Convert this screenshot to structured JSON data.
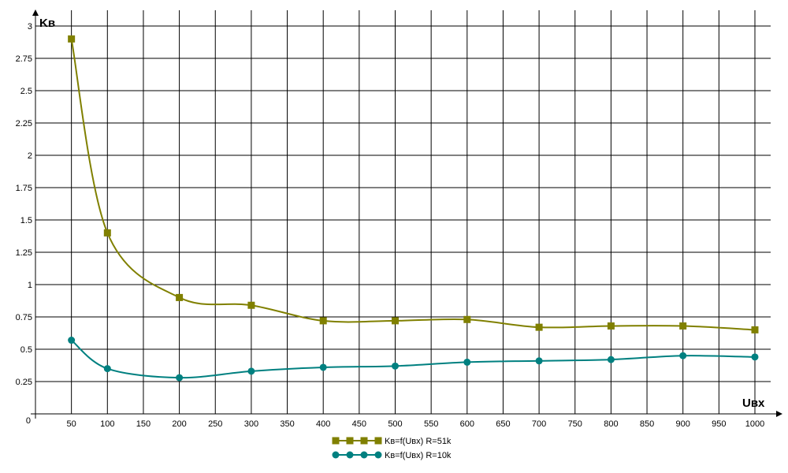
{
  "chart_data": {
    "type": "line",
    "xlabel": "Uвх",
    "ylabel": "Kв",
    "xlim": [
      0,
      1000
    ],
    "ylim": [
      0,
      3
    ],
    "x_ticks": [
      0,
      50,
      100,
      150,
      200,
      250,
      300,
      350,
      400,
      450,
      500,
      550,
      600,
      650,
      700,
      750,
      800,
      850,
      900,
      950,
      1000
    ],
    "y_ticks": [
      0.25,
      0.5,
      0.75,
      1,
      1.25,
      1.5,
      1.75,
      2,
      2.25,
      2.5,
      2.75,
      3
    ],
    "y_tick_labels": [
      "0.25",
      "0.5",
      "0.75",
      "1",
      "1.25",
      "1.5",
      "1.75",
      "2",
      "2.25",
      "2.5",
      "2.75",
      "3"
    ],
    "origin_label": "0",
    "grid": true,
    "legend_position": "bottom-center",
    "series": [
      {
        "name": "Kв=f(Uвх) R=51k",
        "color": "#808000",
        "marker": "square",
        "x": [
          50,
          100,
          200,
          300,
          400,
          500,
          600,
          700,
          800,
          900,
          1000
        ],
        "y": [
          2.9,
          1.4,
          0.9,
          0.84,
          0.72,
          0.72,
          0.73,
          0.67,
          0.68,
          0.68,
          0.65
        ]
      },
      {
        "name": "Kв=f(Uвх) R=10k",
        "color": "#008080",
        "marker": "circle",
        "x": [
          50,
          100,
          200,
          300,
          400,
          500,
          600,
          700,
          800,
          900,
          1000
        ],
        "y": [
          0.57,
          0.35,
          0.28,
          0.33,
          0.36,
          0.37,
          0.4,
          0.41,
          0.42,
          0.45,
          0.44
        ]
      }
    ]
  }
}
